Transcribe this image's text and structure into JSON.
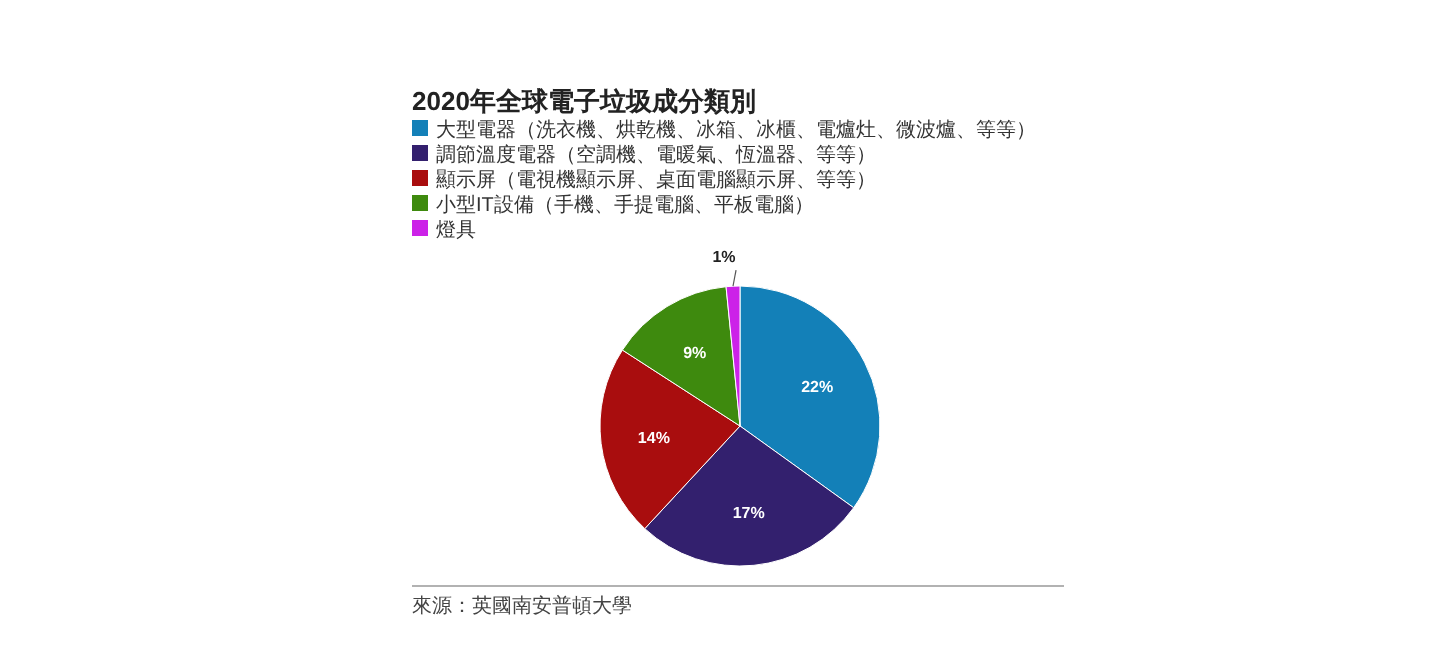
{
  "chart_data": {
    "type": "pie",
    "title": "2020年全球電子垃圾成分類別",
    "categories": [
      "大型電器（洗衣機、烘乾機、冰箱、冰櫃、電爐灶、微波爐、等等）",
      "調節溫度電器（空調機、電暖氣、恆溫器、等等）",
      "顯示屏（電視機顯示屏、桌面電腦顯示屏、等等）",
      "小型IT設備（手機、手提電腦、平板電腦）",
      "燈具"
    ],
    "values": [
      22,
      17,
      14,
      9,
      1
    ],
    "value_labels": [
      "22%",
      "17%",
      "14%",
      "9%",
      "1%"
    ],
    "colors": [
      "#1380b8",
      "#33206e",
      "#a90d0e",
      "#3e8a0e",
      "#cc22e8"
    ],
    "legend": "top left",
    "annotations": [
      "來源：英國南安普頓大學"
    ]
  }
}
